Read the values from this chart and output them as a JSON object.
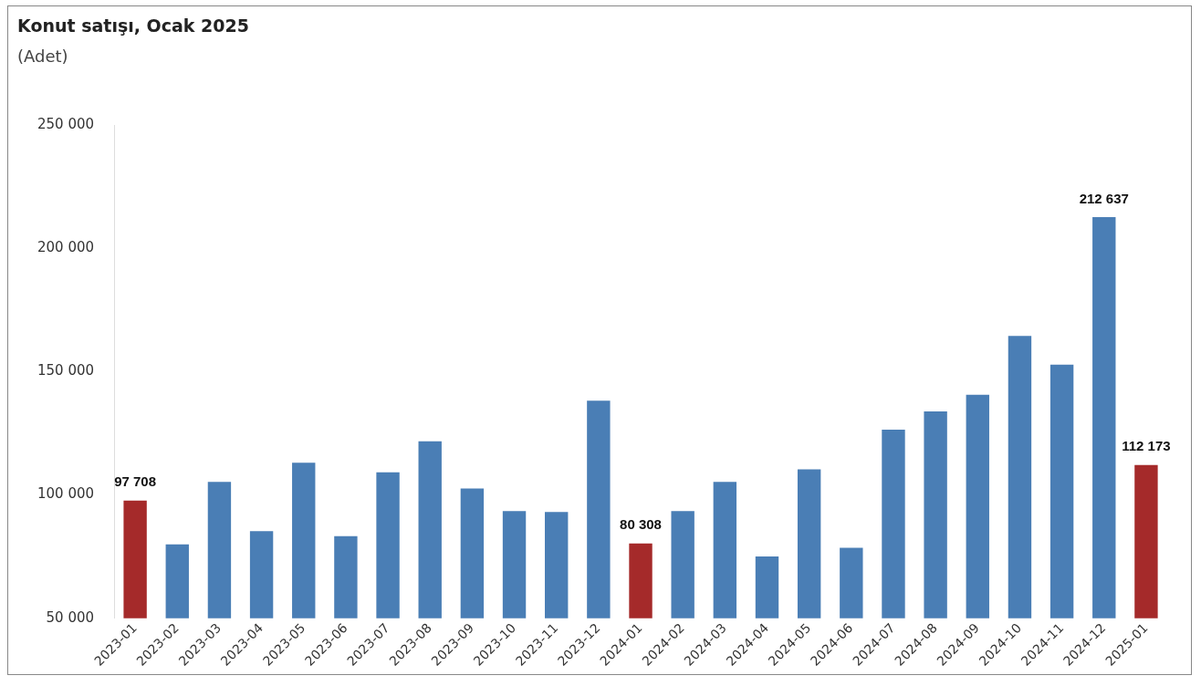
{
  "chart_data": {
    "type": "bar",
    "title": "Konut satışı, Ocak 2025",
    "subtitle": "(Adet)",
    "categories": [
      "2023-01",
      "2023-02",
      "2023-03",
      "2023-04",
      "2023-05",
      "2023-06",
      "2023-07",
      "2023-08",
      "2023-09",
      "2023-10",
      "2023-11",
      "2023-12",
      "2024-01",
      "2024-02",
      "2024-03",
      "2024-04",
      "2024-05",
      "2024-06",
      "2024-07",
      "2024-08",
      "2024-09",
      "2024-10",
      "2024-11",
      "2024-12",
      "2025-01"
    ],
    "values": [
      97708,
      80000,
      105300,
      85300,
      113100,
      83300,
      109200,
      121800,
      102600,
      93500,
      93100,
      138200,
      80308,
      93500,
      105300,
      75100,
      110400,
      78600,
      126500,
      133900,
      140600,
      164500,
      152800,
      212637,
      112173
    ],
    "colors": [
      "#a52a2a",
      "#4a7eb5",
      "#4a7eb5",
      "#4a7eb5",
      "#4a7eb5",
      "#4a7eb5",
      "#4a7eb5",
      "#4a7eb5",
      "#4a7eb5",
      "#4a7eb5",
      "#4a7eb5",
      "#4a7eb5",
      "#a52a2a",
      "#4a7eb5",
      "#4a7eb5",
      "#4a7eb5",
      "#4a7eb5",
      "#4a7eb5",
      "#4a7eb5",
      "#4a7eb5",
      "#4a7eb5",
      "#4a7eb5",
      "#4a7eb5",
      "#4a7eb5",
      "#a52a2a"
    ],
    "value_labels": [
      "97 708",
      null,
      null,
      null,
      null,
      null,
      null,
      null,
      null,
      null,
      null,
      null,
      "80 308",
      null,
      null,
      null,
      null,
      null,
      null,
      null,
      null,
      null,
      null,
      "212 637",
      "112 173"
    ],
    "ylim": [
      50000,
      250000
    ],
    "yticks": [
      {
        "value": 50000,
        "label": "50 000"
      },
      {
        "value": 100000,
        "label": "100 000"
      },
      {
        "value": 150000,
        "label": "150 000"
      },
      {
        "value": 200000,
        "label": "200 000"
      },
      {
        "value": 250000,
        "label": "250 000"
      }
    ],
    "grid": false,
    "legend": false
  }
}
